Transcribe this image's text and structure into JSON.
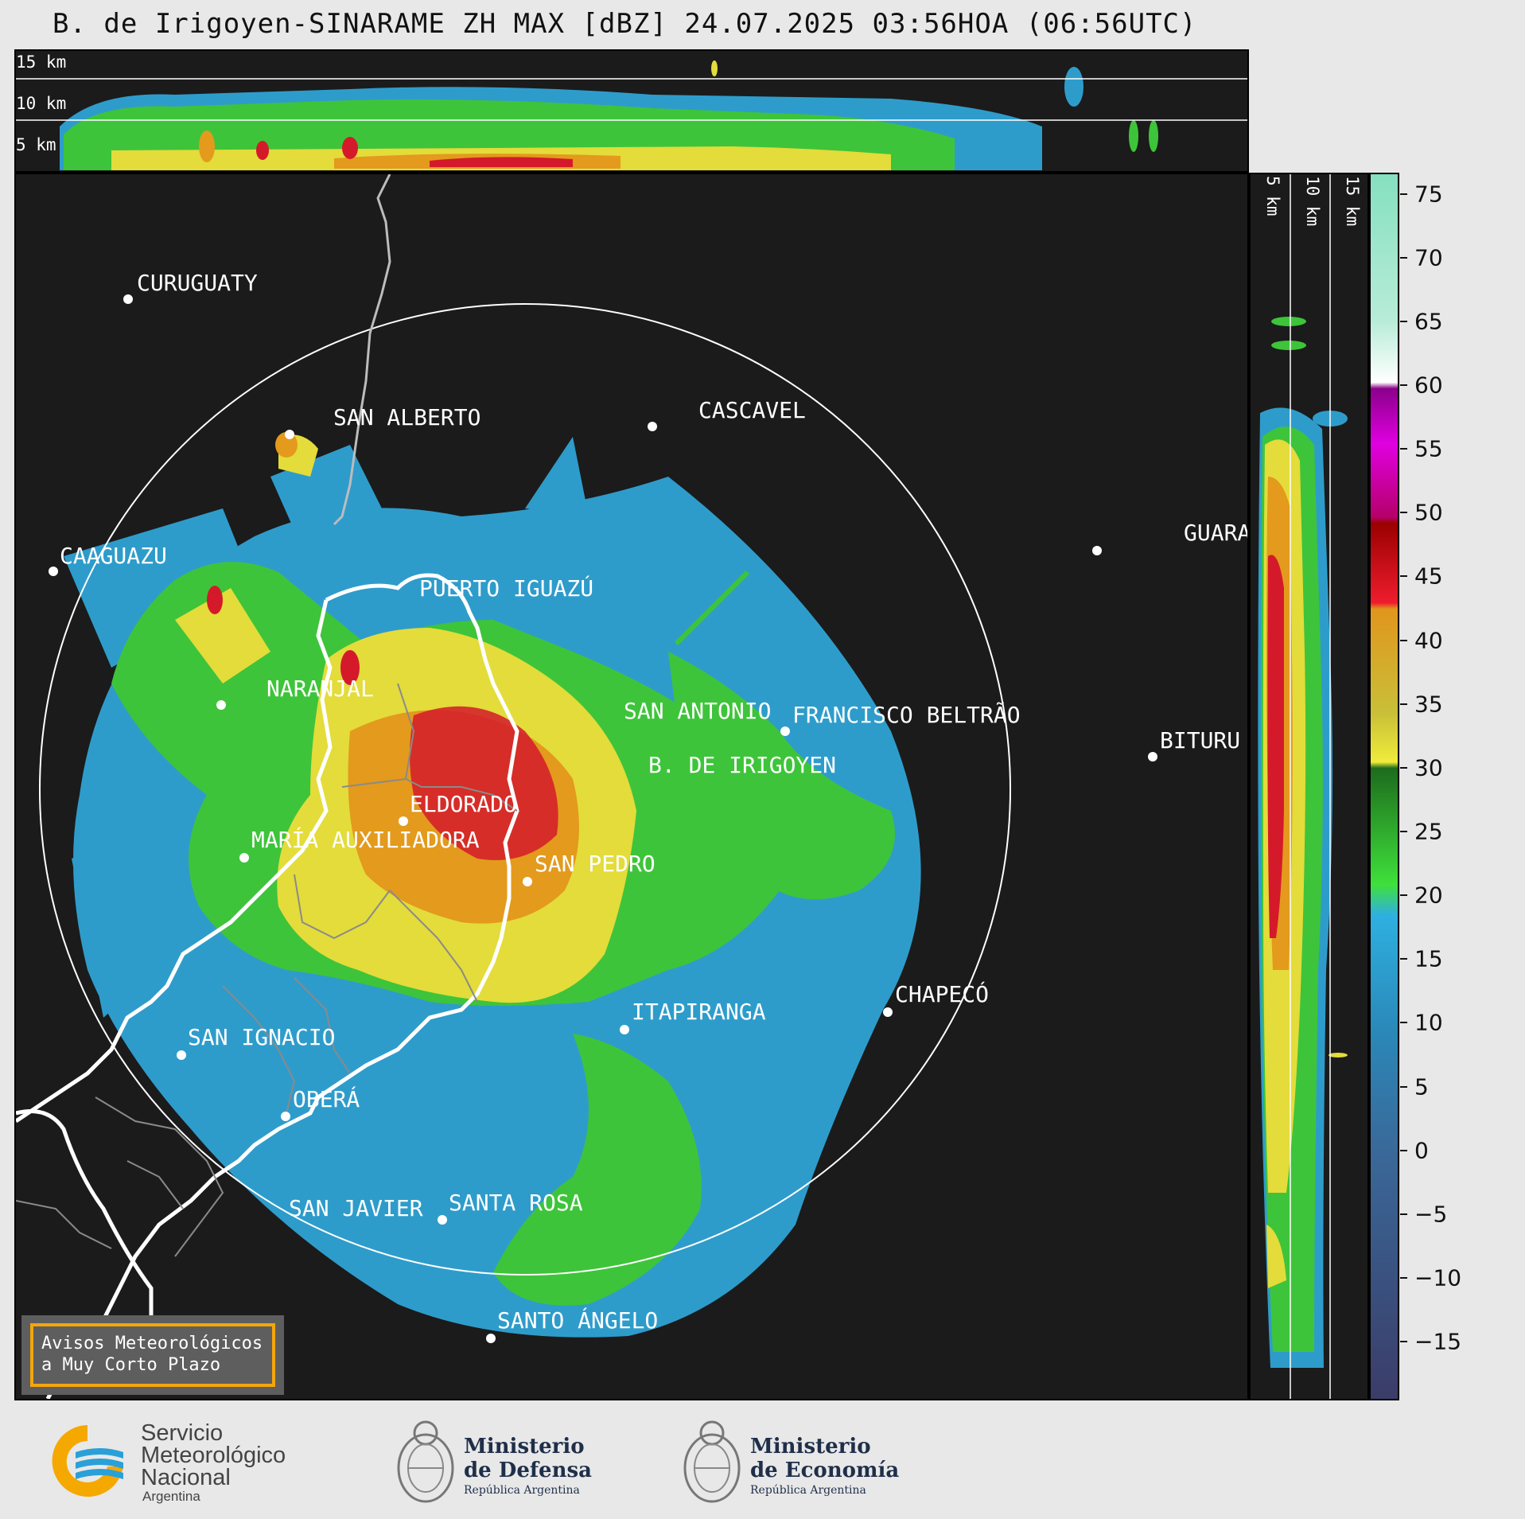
{
  "title": "B. de Irigoyen-SINARAME ZH MAX [dBZ] 24.07.2025 03:56HOA (06:56UTC)",
  "top_panel": {
    "labels": [
      "15 km",
      "10 km",
      "5 km"
    ]
  },
  "right_panel": {
    "labels": [
      "5 km",
      "10 km",
      "15 km"
    ]
  },
  "colorbar": {
    "unit": "dBZ",
    "ticks": [
      "75",
      "70",
      "65",
      "60",
      "55",
      "50",
      "45",
      "40",
      "35",
      "30",
      "25",
      "20",
      "15",
      "10",
      "5",
      "0",
      "−5",
      "−10",
      "−15"
    ],
    "range": [
      -20,
      77
    ]
  },
  "cities": [
    {
      "name": "CURUGUATY"
    },
    {
      "name": "SAN ALBERTO"
    },
    {
      "name": "CASCAVEL"
    },
    {
      "name": "CAAGUAZU"
    },
    {
      "name": "GUARA"
    },
    {
      "name": "PUERTO IGUAZÚ"
    },
    {
      "name": "NARANJAL"
    },
    {
      "name": "SAN ANTONIO"
    },
    {
      "name": "FRANCISCO BELTRÃO"
    },
    {
      "name": "BITURU"
    },
    {
      "name": "B. DE IRIGOYEN"
    },
    {
      "name": "ELDORADO"
    },
    {
      "name": "MARÍA AUXILIADORA"
    },
    {
      "name": "SAN PEDRO"
    },
    {
      "name": "CHAPECÓ"
    },
    {
      "name": "ITAPIRANGA"
    },
    {
      "name": "SAN IGNACIO"
    },
    {
      "name": "OBERÁ"
    },
    {
      "name": "SAN JAVIER"
    },
    {
      "name": "SANTA ROSA"
    },
    {
      "name": "SANTO ÁNGELO"
    }
  ],
  "warning_box": {
    "line1": "Avisos Meteorológicos",
    "line2": "a Muy Corto Plazo"
  },
  "logos": {
    "smn": {
      "line1": "Servicio",
      "line2": "Meteorológico",
      "line3": "Nacional",
      "line4": "Argentina",
      "colors": [
        "#f5a800",
        "#2aa0d8"
      ]
    },
    "defensa": {
      "line1": "Ministerio",
      "line2": "de Defensa",
      "line3": "República Argentina"
    },
    "economia": {
      "line1": "Ministerio",
      "line2": "de Economía",
      "line3": "República Argentina"
    }
  },
  "colors": {
    "background": "#1b1b1b",
    "light_blue": "#2e9ccb",
    "green": "#3ec43a",
    "yellow": "#e3dc3a",
    "orange": "#e39a1d",
    "red": "#d41a2a"
  }
}
